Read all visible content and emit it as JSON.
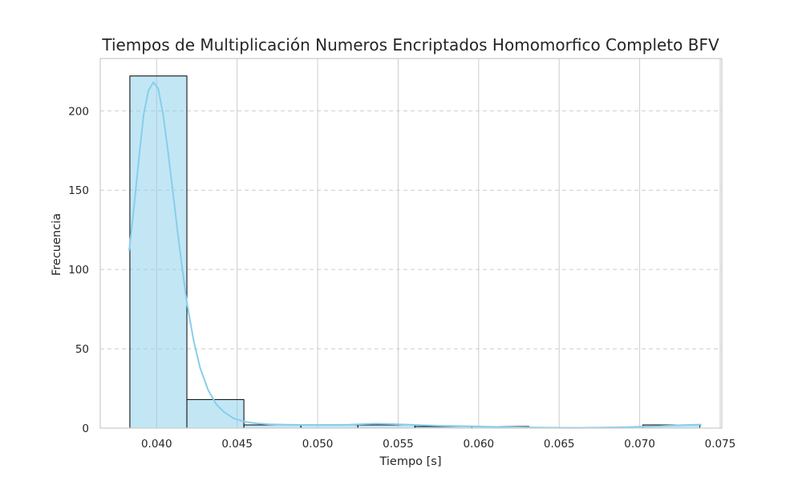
{
  "chart_data": {
    "type": "bar",
    "subtype": "histogram",
    "title": "Tiempos de Multiplicación Numeros Encriptados Homomorfico Completo BFV",
    "xlabel": "Tiempo [s]",
    "ylabel": "Frecuencia",
    "xlim": [
      0.0365,
      0.0751
    ],
    "ylim": [
      0,
      233
    ],
    "xticks": [
      "0.040",
      "0.045",
      "0.050",
      "0.055",
      "0.060",
      "0.065",
      "0.070",
      "0.075"
    ],
    "yticks": [
      "0",
      "50",
      "100",
      "150",
      "200"
    ],
    "bins": [
      {
        "start": 0.03834,
        "end": 0.04188,
        "count": 222
      },
      {
        "start": 0.04188,
        "end": 0.04542,
        "count": 18
      },
      {
        "start": 0.04542,
        "end": 0.04896,
        "count": 2
      },
      {
        "start": 0.04896,
        "end": 0.0525,
        "count": 2
      },
      {
        "start": 0.0525,
        "end": 0.05604,
        "count": 2
      },
      {
        "start": 0.05604,
        "end": 0.05958,
        "count": 1
      },
      {
        "start": 0.05958,
        "end": 0.06312,
        "count": 1
      },
      {
        "start": 0.06312,
        "end": 0.06666,
        "count": 0
      },
      {
        "start": 0.06666,
        "end": 0.0702,
        "count": 0
      },
      {
        "start": 0.0702,
        "end": 0.07374,
        "count": 2
      }
    ],
    "kde": {
      "x": [
        0.0383,
        0.0386,
        0.0389,
        0.0392,
        0.0395,
        0.0398,
        0.0401,
        0.0404,
        0.0407,
        0.041,
        0.0413,
        0.0416,
        0.0419,
        0.0423,
        0.0427,
        0.0432,
        0.0437,
        0.0442,
        0.0448,
        0.0455,
        0.0462,
        0.047,
        0.048,
        0.049,
        0.05,
        0.051,
        0.052,
        0.053,
        0.0536,
        0.0545,
        0.0555,
        0.0565,
        0.0575,
        0.0585,
        0.0595,
        0.0605,
        0.0615,
        0.0625,
        0.0635,
        0.0645,
        0.0655,
        0.0665,
        0.0675,
        0.0685,
        0.0695,
        0.0705,
        0.0715,
        0.0725,
        0.0738
      ],
      "y": [
        112,
        140,
        170,
        198,
        213,
        218,
        214,
        198,
        175,
        150,
        124,
        100,
        78,
        55,
        38,
        24,
        15,
        10,
        6,
        4,
        3,
        2.4,
        2.1,
        2.0,
        2.0,
        2.0,
        2.1,
        2.6,
        2.8,
        2.6,
        2.2,
        1.8,
        1.5,
        1.3,
        1.1,
        0.9,
        0.7,
        0.5,
        0.35,
        0.25,
        0.2,
        0.2,
        0.3,
        0.45,
        0.7,
        1.0,
        1.4,
        1.8,
        2.2
      ]
    },
    "colors": {
      "bar_fill": "#87ceeb",
      "bar_fill_opacity": 0.5,
      "bar_edge": "#000000",
      "kde_line": "#87ceeb",
      "grid": "#cccccc",
      "axes_frame": "#cccccc",
      "text": "#262626"
    },
    "grid": {
      "vertical": "solid",
      "horizontal": "dashed"
    },
    "legend": "none"
  }
}
